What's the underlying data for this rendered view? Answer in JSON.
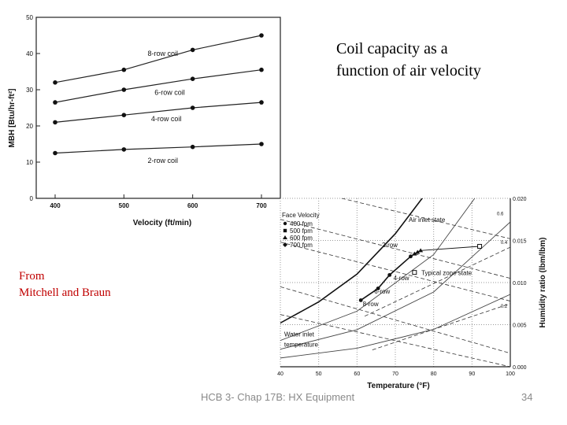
{
  "caption": {
    "line1": "Coil capacity as a",
    "line2": "function of air velocity"
  },
  "credit": {
    "line1": "From",
    "line2": "Mitchell and Braun"
  },
  "footer": {
    "text": "HCB 3- Chap 17B: HX Equipment",
    "page": "34"
  },
  "chart_data": [
    {
      "type": "line",
      "xlabel": "Velocity (ft/min)",
      "ylabel": "MBH [Btu/hr-ft²]",
      "x": [
        400,
        500,
        600,
        700
      ],
      "xlim": [
        400,
        700
      ],
      "ylim": [
        0,
        50
      ],
      "xticks": [
        "400",
        "500",
        "600",
        "700"
      ],
      "yticks": [
        "0",
        "10",
        "20",
        "30",
        "40",
        "50"
      ],
      "grid": false,
      "series": [
        {
          "name": "8-row coil",
          "values": [
            32,
            35.5,
            41,
            45
          ]
        },
        {
          "name": "6-row coil",
          "values": [
            26.5,
            30,
            33,
            35.5
          ]
        },
        {
          "name": "4-row coil",
          "values": [
            21,
            23,
            25,
            26.5
          ]
        },
        {
          "name": "2-row coil",
          "values": [
            12.5,
            13.5,
            14.2,
            15
          ]
        }
      ]
    },
    {
      "type": "scatter",
      "xlabel": "Temperature (°F)",
      "ylabel": "Humidity ratio (lbm/lbm)",
      "xlim": [
        40,
        100
      ],
      "ylim": [
        0,
        0.02
      ],
      "xticks": [
        "40",
        "50",
        "60",
        "70",
        "80",
        "90",
        "100"
      ],
      "yticks": [
        "0.000",
        "0.005",
        "0.010",
        "0.015",
        "0.020"
      ],
      "legend_title": "Face Velocity",
      "legend": [
        "400 fpm",
        "500 fpm",
        "600 fpm",
        "700 fpm"
      ],
      "rh_labels": [
        "0.6",
        "0.4",
        "0.2"
      ],
      "annotations": {
        "air_inlet": "Air inlet state",
        "zone": "Typical zone state",
        "water": "Water inlet",
        "water2": "temperature",
        "row2": "2-row",
        "row4": "4-row",
        "row6": "6-row",
        "row8": "8-row"
      },
      "saturation": [
        [
          40,
          0.0052
        ],
        [
          50,
          0.0077
        ],
        [
          60,
          0.011
        ],
        [
          70,
          0.0158
        ],
        [
          77,
          0.02
        ]
      ],
      "air_inlet_point": [
        92,
        0.0143
      ],
      "zone_point": [
        75,
        0.0112
      ],
      "coil_outlet_points": [
        {
          "x": 61,
          "y": 0.0079
        },
        {
          "x": 65.5,
          "y": 0.0093
        },
        {
          "x": 68.5,
          "y": 0.0109
        },
        {
          "x": 74,
          "y": 0.0131
        },
        {
          "x": 75,
          "y": 0.0134
        },
        {
          "x": 75.8,
          "y": 0.0136
        },
        {
          "x": 76.6,
          "y": 0.0138
        }
      ]
    }
  ]
}
